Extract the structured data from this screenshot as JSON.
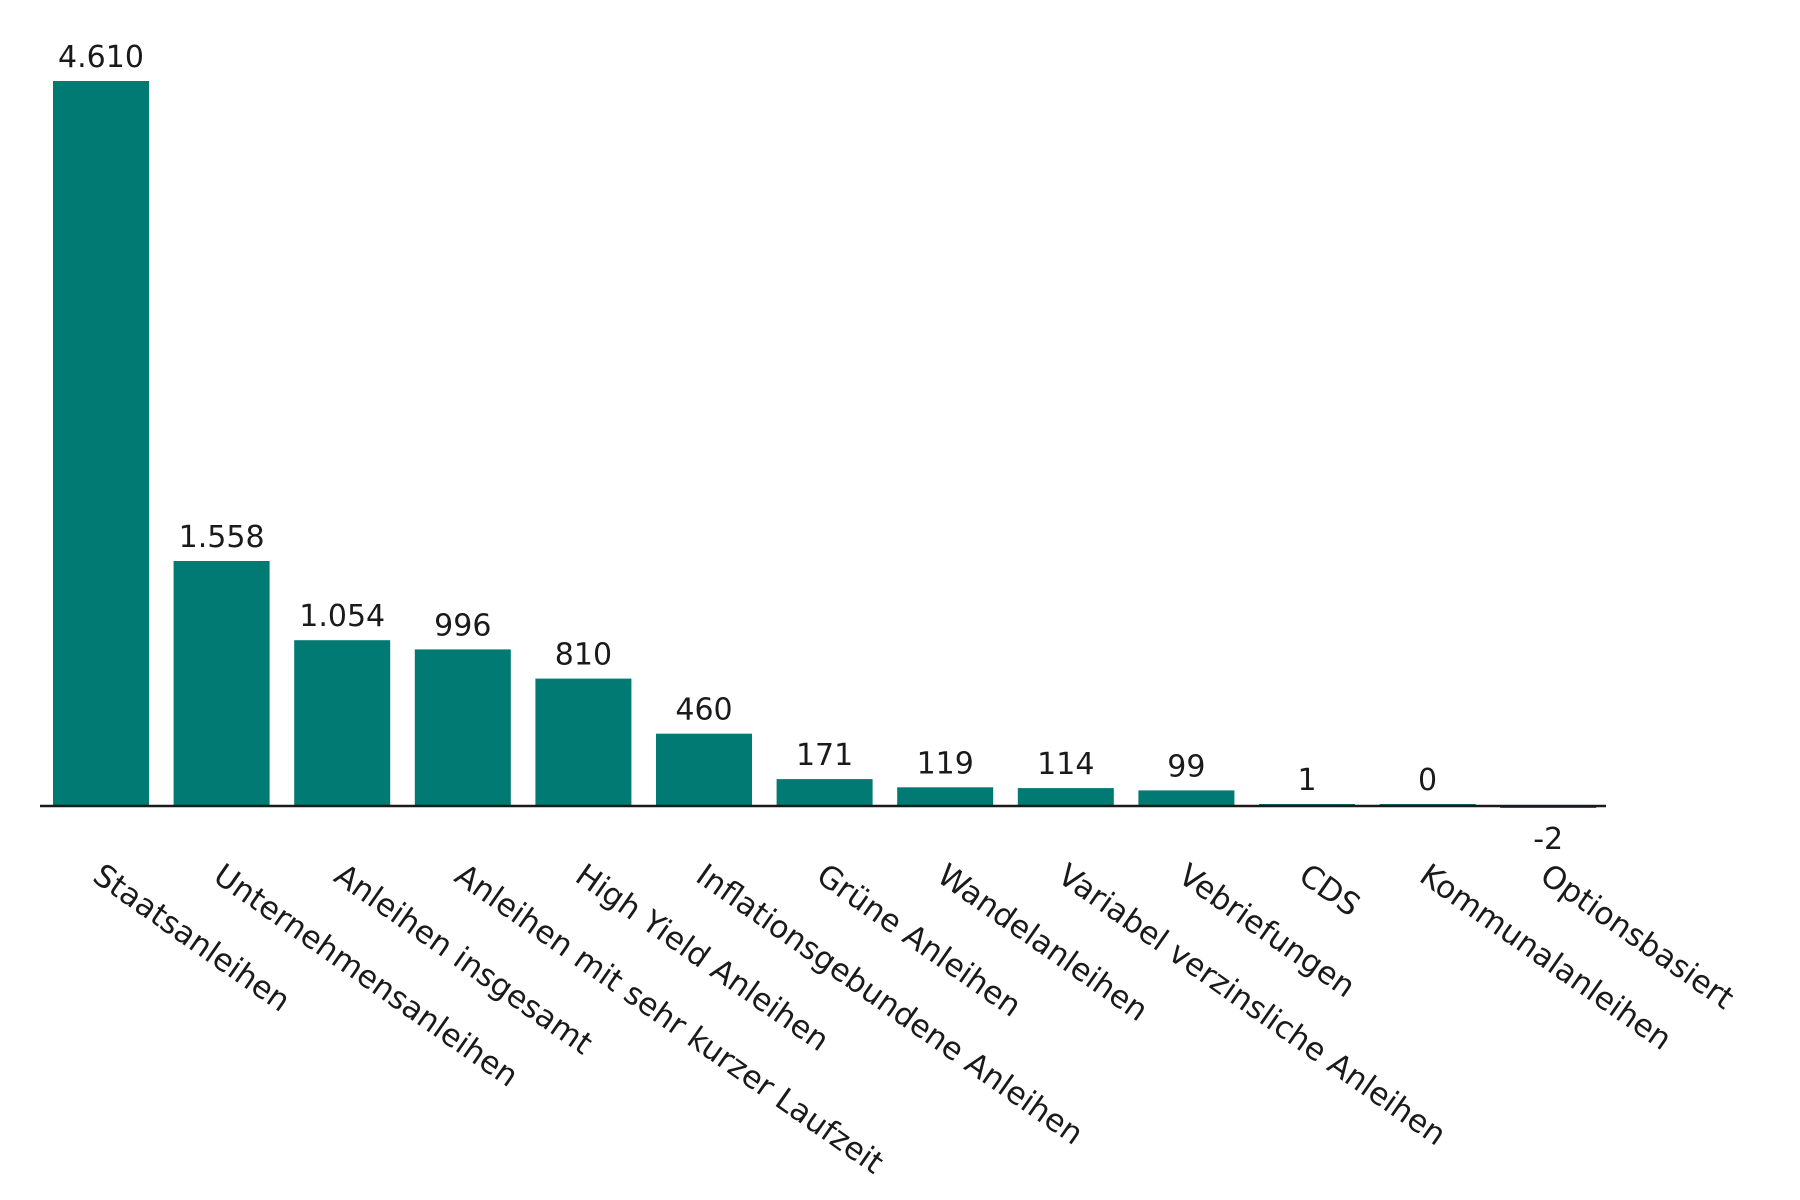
{
  "chart_data": {
    "type": "bar",
    "categories": [
      "Staatsanleihen",
      "Unternehmensanleihen",
      "Anleihen insgesamt",
      "Anleihen mit sehr kurzer Laufzeit",
      "High Yield Anleihen",
      "Inflationsgebundene Anleihen",
      "Grüne Anleihen",
      "Wandelanleihen",
      "Variabel verzinsliche Anleihen",
      "Vebriefungen",
      "CDS",
      "Kommunalanleihen",
      "Optionsbasiert"
    ],
    "values": [
      4610,
      1558,
      1054,
      996,
      810,
      460,
      171,
      119,
      114,
      99,
      1,
      0,
      -2
    ],
    "value_labels": [
      "4.610",
      "1.558",
      "1.054",
      "996",
      "810",
      "460",
      "171",
      "119",
      "114",
      "99",
      "1",
      "0",
      "-2"
    ],
    "title": "",
    "xlabel": "",
    "ylabel": "",
    "ylim": [
      -2,
      4610
    ],
    "grid": false,
    "bar_color": "#007A72",
    "axis_color": "#1a1a1a"
  }
}
